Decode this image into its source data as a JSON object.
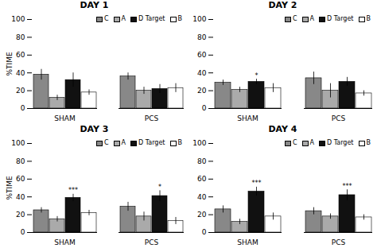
{
  "chart_data": [
    {
      "type": "bar",
      "title": "DAY 1",
      "categories": [
        "SHAM",
        "PCS"
      ],
      "series": [
        {
          "name": "C",
          "color": "#888888",
          "values": [
            38,
            36
          ],
          "errors": [
            6,
            4
          ]
        },
        {
          "name": "A",
          "color": "#aaaaaa",
          "values": [
            12,
            20
          ],
          "errors": [
            3,
            4
          ]
        },
        {
          "name": "D Target",
          "color": "#111111",
          "values": [
            32,
            22
          ],
          "errors": [
            8,
            5
          ]
        },
        {
          "name": "B",
          "color": "#ffffff",
          "values": [
            18,
            23
          ],
          "errors": [
            3,
            5
          ]
        }
      ],
      "annotations": [],
      "ylabel": "%TIME",
      "ylim": [
        0,
        100
      ],
      "yticks": [
        0,
        20,
        40,
        60,
        80,
        100
      ],
      "legend": "upper right"
    },
    {
      "type": "bar",
      "title": "DAY 2",
      "categories": [
        "SHAM",
        "PCS"
      ],
      "series": [
        {
          "name": "C",
          "color": "#888888",
          "values": [
            29,
            34
          ],
          "errors": [
            3,
            7
          ]
        },
        {
          "name": "A",
          "color": "#aaaaaa",
          "values": [
            21,
            20
          ],
          "errors": [
            3,
            8
          ]
        },
        {
          "name": "D Target",
          "color": "#111111",
          "values": [
            30,
            30
          ],
          "errors": [
            3,
            5
          ]
        },
        {
          "name": "B",
          "color": "#ffffff",
          "values": [
            23,
            17
          ],
          "errors": [
            5,
            3
          ]
        }
      ],
      "annotations": [
        {
          "category": "SHAM",
          "series": "D Target",
          "text": "*"
        }
      ],
      "ylim": [
        0,
        100
      ],
      "yticks": [
        0,
        20,
        40,
        60,
        80,
        100
      ],
      "legend": "upper right"
    },
    {
      "type": "bar",
      "title": "DAY 3",
      "categories": [
        "SHAM",
        "PCS"
      ],
      "series": [
        {
          "name": "C",
          "color": "#888888",
          "values": [
            25,
            29
          ],
          "errors": [
            3,
            5
          ]
        },
        {
          "name": "A",
          "color": "#aaaaaa",
          "values": [
            15,
            18
          ],
          "errors": [
            3,
            5
          ]
        },
        {
          "name": "D Target",
          "color": "#111111",
          "values": [
            39,
            41
          ],
          "errors": [
            4,
            6
          ]
        },
        {
          "name": "B",
          "color": "#ffffff",
          "values": [
            22,
            13
          ],
          "errors": [
            3,
            4
          ]
        }
      ],
      "annotations": [
        {
          "category": "SHAM",
          "series": "D Target",
          "text": "***"
        },
        {
          "category": "PCS",
          "series": "D Target",
          "text": "*"
        }
      ],
      "ylabel": "%TIME",
      "ylim": [
        0,
        100
      ],
      "yticks": [
        0,
        20,
        40,
        60,
        80,
        100
      ],
      "legend": "upper right"
    },
    {
      "type": "bar",
      "title": "DAY 4",
      "categories": [
        "SHAM",
        "PCS"
      ],
      "series": [
        {
          "name": "C",
          "color": "#888888",
          "values": [
            26,
            24
          ],
          "errors": [
            4,
            4
          ]
        },
        {
          "name": "A",
          "color": "#aaaaaa",
          "values": [
            12,
            18
          ],
          "errors": [
            3,
            3
          ]
        },
        {
          "name": "D Target",
          "color": "#111111",
          "values": [
            46,
            42
          ],
          "errors": [
            5,
            6
          ]
        },
        {
          "name": "B",
          "color": "#ffffff",
          "values": [
            18,
            17
          ],
          "errors": [
            4,
            3
          ]
        }
      ],
      "annotations": [
        {
          "category": "SHAM",
          "series": "D Target",
          "text": "***"
        },
        {
          "category": "PCS",
          "series": "D Target",
          "text": "***"
        }
      ],
      "ylim": [
        0,
        100
      ],
      "yticks": [
        0,
        20,
        40,
        60,
        80,
        100
      ],
      "legend": "upper right"
    }
  ]
}
